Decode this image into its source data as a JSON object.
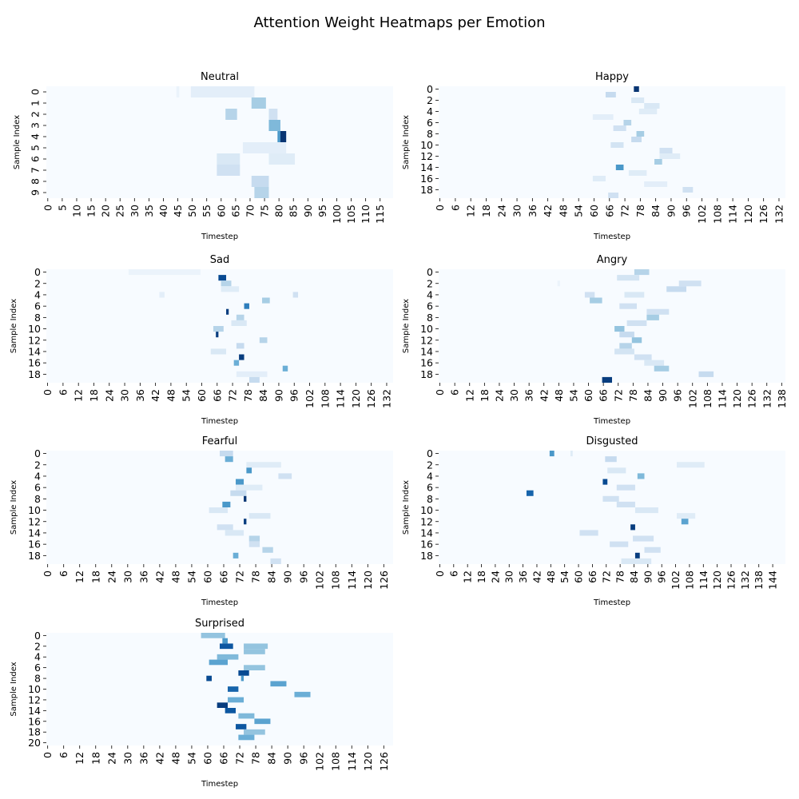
{
  "figure_title": "Attention Weight Heatmaps per Emotion",
  "colormap": [
    "#f7fbff",
    "#deebf7",
    "#c6dbef",
    "#9ecae1",
    "#6baed6",
    "#4292c6",
    "#2171b5",
    "#08519c",
    "#08306b"
  ],
  "chart_data": [
    {
      "type": "heatmap",
      "title": "Neutral",
      "xlabel": "Timestep",
      "ylabel": "Sample Index",
      "n_timesteps": 120,
      "n_samples": 10,
      "x_tick_step": 5,
      "y_tick_step": 1,
      "segments": [
        {
          "row": 0,
          "start": 45,
          "end": 46,
          "weight": 0.06
        },
        {
          "row": 0,
          "start": 50,
          "end": 72,
          "weight": 0.1
        },
        {
          "row": 1,
          "start": 71,
          "end": 76,
          "weight": 0.35
        },
        {
          "row": 2,
          "start": 62,
          "end": 66,
          "weight": 0.3
        },
        {
          "row": 2,
          "start": 77,
          "end": 80,
          "weight": 0.2
        },
        {
          "row": 3,
          "start": 77,
          "end": 81,
          "weight": 0.45
        },
        {
          "row": 4,
          "start": 80,
          "end": 81,
          "weight": 0.6
        },
        {
          "row": 4,
          "start": 81,
          "end": 83,
          "weight": 0.98
        },
        {
          "row": 5,
          "start": 68,
          "end": 83,
          "weight": 0.1
        },
        {
          "row": 6,
          "start": 59,
          "end": 67,
          "weight": 0.15
        },
        {
          "row": 6,
          "start": 77,
          "end": 86,
          "weight": 0.12
        },
        {
          "row": 7,
          "start": 59,
          "end": 67,
          "weight": 0.2
        },
        {
          "row": 8,
          "start": 71,
          "end": 77,
          "weight": 0.25
        },
        {
          "row": 9,
          "start": 72,
          "end": 77,
          "weight": 0.3
        }
      ]
    },
    {
      "type": "heatmap",
      "title": "Happy",
      "xlabel": "Timestep",
      "ylabel": "Sample Index",
      "n_timesteps": 135,
      "n_samples": 20,
      "x_tick_step": 6,
      "y_tick_step": 2,
      "segments": [
        {
          "row": 0,
          "start": 76,
          "end": 78,
          "weight": 0.98
        },
        {
          "row": 1,
          "start": 65,
          "end": 69,
          "weight": 0.25
        },
        {
          "row": 2,
          "start": 75,
          "end": 80,
          "weight": 0.15
        },
        {
          "row": 3,
          "start": 80,
          "end": 86,
          "weight": 0.15
        },
        {
          "row": 4,
          "start": 78,
          "end": 85,
          "weight": 0.12
        },
        {
          "row": 5,
          "start": 60,
          "end": 68,
          "weight": 0.1
        },
        {
          "row": 6,
          "start": 72,
          "end": 75,
          "weight": 0.3
        },
        {
          "row": 7,
          "start": 68,
          "end": 73,
          "weight": 0.2
        },
        {
          "row": 8,
          "start": 77,
          "end": 80,
          "weight": 0.35
        },
        {
          "row": 9,
          "start": 75,
          "end": 79,
          "weight": 0.25
        },
        {
          "row": 10,
          "start": 67,
          "end": 72,
          "weight": 0.18
        },
        {
          "row": 11,
          "start": 86,
          "end": 91,
          "weight": 0.2
        },
        {
          "row": 12,
          "start": 86,
          "end": 94,
          "weight": 0.12
        },
        {
          "row": 13,
          "start": 84,
          "end": 87,
          "weight": 0.35
        },
        {
          "row": 14,
          "start": 69,
          "end": 72,
          "weight": 0.6
        },
        {
          "row": 15,
          "start": 74,
          "end": 81,
          "weight": 0.12
        },
        {
          "row": 16,
          "start": 60,
          "end": 65,
          "weight": 0.12
        },
        {
          "row": 17,
          "start": 80,
          "end": 89,
          "weight": 0.1
        },
        {
          "row": 18,
          "start": 95,
          "end": 99,
          "weight": 0.2
        },
        {
          "row": 19,
          "start": 66,
          "end": 70,
          "weight": 0.2
        }
      ]
    },
    {
      "type": "heatmap",
      "title": "Sad",
      "xlabel": "Timestep",
      "ylabel": "Sample Index",
      "n_timesteps": 135,
      "n_samples": 20,
      "x_tick_step": 6,
      "y_tick_step": 2,
      "segments": [
        {
          "row": 0,
          "start": 32,
          "end": 60,
          "weight": 0.06
        },
        {
          "row": 1,
          "start": 67,
          "end": 70,
          "weight": 0.9
        },
        {
          "row": 2,
          "start": 68,
          "end": 72,
          "weight": 0.3
        },
        {
          "row": 3,
          "start": 68,
          "end": 75,
          "weight": 0.12
        },
        {
          "row": 4,
          "start": 44,
          "end": 46,
          "weight": 0.1
        },
        {
          "row": 4,
          "start": 96,
          "end": 98,
          "weight": 0.2
        },
        {
          "row": 5,
          "start": 84,
          "end": 87,
          "weight": 0.35
        },
        {
          "row": 6,
          "start": 77,
          "end": 79,
          "weight": 0.7
        },
        {
          "row": 7,
          "start": 70,
          "end": 71,
          "weight": 0.95
        },
        {
          "row": 8,
          "start": 74,
          "end": 77,
          "weight": 0.3
        },
        {
          "row": 9,
          "start": 72,
          "end": 78,
          "weight": 0.15
        },
        {
          "row": 10,
          "start": 65,
          "end": 69,
          "weight": 0.3
        },
        {
          "row": 11,
          "start": 66,
          "end": 67,
          "weight": 0.95
        },
        {
          "row": 12,
          "start": 83,
          "end": 86,
          "weight": 0.3
        },
        {
          "row": 13,
          "start": 74,
          "end": 77,
          "weight": 0.25
        },
        {
          "row": 14,
          "start": 64,
          "end": 70,
          "weight": 0.15
        },
        {
          "row": 15,
          "start": 75,
          "end": 77,
          "weight": 0.95
        },
        {
          "row": 16,
          "start": 73,
          "end": 75,
          "weight": 0.5
        },
        {
          "row": 17,
          "start": 92,
          "end": 94,
          "weight": 0.5
        },
        {
          "row": 18,
          "start": 74,
          "end": 86,
          "weight": 0.1
        },
        {
          "row": 19,
          "start": 79,
          "end": 83,
          "weight": 0.25
        }
      ]
    },
    {
      "type": "heatmap",
      "title": "Angry",
      "xlabel": "Timestep",
      "ylabel": "Sample Index",
      "n_timesteps": 140,
      "n_samples": 20,
      "x_tick_step": 6,
      "y_tick_step": 2,
      "segments": [
        {
          "row": 0,
          "start": 79,
          "end": 85,
          "weight": 0.3
        },
        {
          "row": 1,
          "start": 72,
          "end": 81,
          "weight": 0.18
        },
        {
          "row": 2,
          "start": 97,
          "end": 106,
          "weight": 0.2
        },
        {
          "row": 2,
          "start": 48,
          "end": 49,
          "weight": 0.06
        },
        {
          "row": 3,
          "start": 92,
          "end": 100,
          "weight": 0.25
        },
        {
          "row": 4,
          "start": 59,
          "end": 63,
          "weight": 0.2
        },
        {
          "row": 4,
          "start": 75,
          "end": 83,
          "weight": 0.15
        },
        {
          "row": 5,
          "start": 61,
          "end": 66,
          "weight": 0.35
        },
        {
          "row": 6,
          "start": 73,
          "end": 80,
          "weight": 0.2
        },
        {
          "row": 7,
          "start": 84,
          "end": 93,
          "weight": 0.2
        },
        {
          "row": 8,
          "start": 84,
          "end": 89,
          "weight": 0.35
        },
        {
          "row": 9,
          "start": 76,
          "end": 84,
          "weight": 0.2
        },
        {
          "row": 10,
          "start": 71,
          "end": 75,
          "weight": 0.4
        },
        {
          "row": 11,
          "start": 73,
          "end": 79,
          "weight": 0.25
        },
        {
          "row": 12,
          "start": 78,
          "end": 82,
          "weight": 0.4
        },
        {
          "row": 13,
          "start": 73,
          "end": 78,
          "weight": 0.3
        },
        {
          "row": 14,
          "start": 71,
          "end": 79,
          "weight": 0.18
        },
        {
          "row": 15,
          "start": 79,
          "end": 86,
          "weight": 0.2
        },
        {
          "row": 16,
          "start": 83,
          "end": 91,
          "weight": 0.15
        },
        {
          "row": 17,
          "start": 87,
          "end": 93,
          "weight": 0.35
        },
        {
          "row": 18,
          "start": 105,
          "end": 111,
          "weight": 0.25
        },
        {
          "row": 19,
          "start": 66,
          "end": 70,
          "weight": 0.95
        }
      ]
    },
    {
      "type": "heatmap",
      "title": "Fearful",
      "xlabel": "Timestep",
      "ylabel": "Sample Index",
      "n_timesteps": 130,
      "n_samples": 20,
      "x_tick_step": 6,
      "y_tick_step": 2,
      "segments": [
        {
          "row": 0,
          "start": 65,
          "end": 70,
          "weight": 0.25
        },
        {
          "row": 1,
          "start": 67,
          "end": 70,
          "weight": 0.5
        },
        {
          "row": 2,
          "start": 75,
          "end": 88,
          "weight": 0.12
        },
        {
          "row": 3,
          "start": 75,
          "end": 77,
          "weight": 0.6
        },
        {
          "row": 4,
          "start": 87,
          "end": 92,
          "weight": 0.2
        },
        {
          "row": 5,
          "start": 71,
          "end": 74,
          "weight": 0.6
        },
        {
          "row": 6,
          "start": 71,
          "end": 81,
          "weight": 0.12
        },
        {
          "row": 7,
          "start": 69,
          "end": 75,
          "weight": 0.25
        },
        {
          "row": 8,
          "start": 74,
          "end": 75,
          "weight": 0.98
        },
        {
          "row": 9,
          "start": 66,
          "end": 69,
          "weight": 0.6
        },
        {
          "row": 10,
          "start": 61,
          "end": 68,
          "weight": 0.15
        },
        {
          "row": 11,
          "start": 76,
          "end": 84,
          "weight": 0.15
        },
        {
          "row": 12,
          "start": 74,
          "end": 75,
          "weight": 0.95
        },
        {
          "row": 13,
          "start": 64,
          "end": 70,
          "weight": 0.2
        },
        {
          "row": 14,
          "start": 67,
          "end": 74,
          "weight": 0.15
        },
        {
          "row": 15,
          "start": 76,
          "end": 80,
          "weight": 0.3
        },
        {
          "row": 16,
          "start": 76,
          "end": 80,
          "weight": 0.2
        },
        {
          "row": 17,
          "start": 81,
          "end": 85,
          "weight": 0.3
        },
        {
          "row": 18,
          "start": 70,
          "end": 72,
          "weight": 0.5
        },
        {
          "row": 19,
          "start": 84,
          "end": 88,
          "weight": 0.2
        }
      ]
    },
    {
      "type": "heatmap",
      "title": "Disgusted",
      "xlabel": "Timestep",
      "ylabel": "Sample Index",
      "n_timesteps": 150,
      "n_samples": 20,
      "x_tick_step": 6,
      "y_tick_step": 2,
      "segments": [
        {
          "row": 0,
          "start": 48,
          "end": 50,
          "weight": 0.6
        },
        {
          "row": 0,
          "start": 57,
          "end": 58,
          "weight": 0.12
        },
        {
          "row": 1,
          "start": 72,
          "end": 77,
          "weight": 0.25
        },
        {
          "row": 2,
          "start": 103,
          "end": 115,
          "weight": 0.12
        },
        {
          "row": 3,
          "start": 73,
          "end": 81,
          "weight": 0.15
        },
        {
          "row": 4,
          "start": 86,
          "end": 89,
          "weight": 0.45
        },
        {
          "row": 5,
          "start": 71,
          "end": 73,
          "weight": 0.9
        },
        {
          "row": 6,
          "start": 77,
          "end": 85,
          "weight": 0.2
        },
        {
          "row": 7,
          "start": 38,
          "end": 41,
          "weight": 0.8
        },
        {
          "row": 8,
          "start": 71,
          "end": 78,
          "weight": 0.2
        },
        {
          "row": 9,
          "start": 77,
          "end": 85,
          "weight": 0.2
        },
        {
          "row": 10,
          "start": 85,
          "end": 95,
          "weight": 0.15
        },
        {
          "row": 11,
          "start": 103,
          "end": 111,
          "weight": 0.12
        },
        {
          "row": 12,
          "start": 105,
          "end": 108,
          "weight": 0.55
        },
        {
          "row": 13,
          "start": 83,
          "end": 85,
          "weight": 0.95
        },
        {
          "row": 14,
          "start": 61,
          "end": 69,
          "weight": 0.2
        },
        {
          "row": 15,
          "start": 84,
          "end": 93,
          "weight": 0.2
        },
        {
          "row": 16,
          "start": 74,
          "end": 82,
          "weight": 0.2
        },
        {
          "row": 17,
          "start": 89,
          "end": 96,
          "weight": 0.2
        },
        {
          "row": 18,
          "start": 85,
          "end": 87,
          "weight": 0.95
        },
        {
          "row": 19,
          "start": 79,
          "end": 92,
          "weight": 0.15
        }
      ]
    },
    {
      "type": "heatmap",
      "title": "Surprised",
      "xlabel": "Timestep",
      "ylabel": "Sample Index",
      "n_timesteps": 130,
      "n_samples": 21,
      "x_tick_step": 6,
      "y_tick_step": 2,
      "segments": [
        {
          "row": 0,
          "start": 58,
          "end": 67,
          "weight": 0.4
        },
        {
          "row": 1,
          "start": 66,
          "end": 68,
          "weight": 0.6
        },
        {
          "row": 2,
          "start": 65,
          "end": 70,
          "weight": 0.85
        },
        {
          "row": 2,
          "start": 74,
          "end": 83,
          "weight": 0.4
        },
        {
          "row": 3,
          "start": 74,
          "end": 82,
          "weight": 0.4
        },
        {
          "row": 4,
          "start": 64,
          "end": 72,
          "weight": 0.45
        },
        {
          "row": 5,
          "start": 61,
          "end": 68,
          "weight": 0.55
        },
        {
          "row": 6,
          "start": 74,
          "end": 82,
          "weight": 0.4
        },
        {
          "row": 7,
          "start": 72,
          "end": 76,
          "weight": 0.9
        },
        {
          "row": 8,
          "start": 60,
          "end": 62,
          "weight": 0.9
        },
        {
          "row": 8,
          "start": 73,
          "end": 74,
          "weight": 0.6
        },
        {
          "row": 9,
          "start": 84,
          "end": 90,
          "weight": 0.55
        },
        {
          "row": 10,
          "start": 68,
          "end": 72,
          "weight": 0.8
        },
        {
          "row": 11,
          "start": 93,
          "end": 99,
          "weight": 0.5
        },
        {
          "row": 12,
          "start": 68,
          "end": 74,
          "weight": 0.5
        },
        {
          "row": 13,
          "start": 64,
          "end": 68,
          "weight": 0.95
        },
        {
          "row": 14,
          "start": 67,
          "end": 71,
          "weight": 0.85
        },
        {
          "row": 15,
          "start": 72,
          "end": 78,
          "weight": 0.45
        },
        {
          "row": 16,
          "start": 78,
          "end": 84,
          "weight": 0.55
        },
        {
          "row": 17,
          "start": 71,
          "end": 75,
          "weight": 0.85
        },
        {
          "row": 18,
          "start": 74,
          "end": 82,
          "weight": 0.4
        },
        {
          "row": 19,
          "start": 72,
          "end": 78,
          "weight": 0.5
        }
      ]
    }
  ]
}
